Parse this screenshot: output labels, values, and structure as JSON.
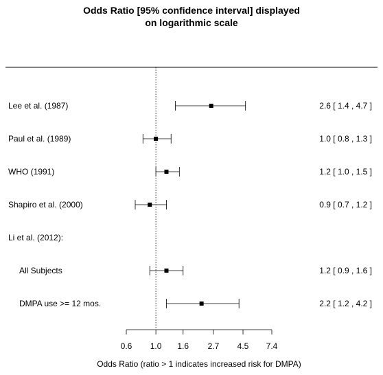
{
  "chart_data": {
    "type": "forest",
    "title_lines": [
      "Odds Ratio [95% confidence interval] displayed",
      "on logarithmic scale"
    ],
    "xlabel": "Odds Ratio (ratio > 1 indicates increased risk for DMPA)",
    "x_scale": "log",
    "xlim": [
      0.6,
      7.4
    ],
    "reference_line": 1.0,
    "x_ticks": [
      {
        "value": 0.6,
        "label": "0.6"
      },
      {
        "value": 1.0,
        "label": "1.0"
      },
      {
        "value": 1.6,
        "label": "1.6"
      },
      {
        "value": 2.7,
        "label": "2.7"
      },
      {
        "value": 4.5,
        "label": "4.5"
      },
      {
        "value": 7.4,
        "label": "7.4"
      }
    ],
    "rows": [
      {
        "label": "Lee et al. (1987)",
        "indent": false,
        "or": 2.6,
        "lo": 1.4,
        "hi": 4.7,
        "ci_text": "2.6 [ 1.4 , 4.7 ]"
      },
      {
        "label": "Paul et al. (1989)",
        "indent": false,
        "or": 1.0,
        "lo": 0.8,
        "hi": 1.3,
        "ci_text": "1.0 [ 0.8 , 1.3 ]"
      },
      {
        "label": "WHO (1991)",
        "indent": false,
        "or": 1.2,
        "lo": 1.0,
        "hi": 1.5,
        "ci_text": "1.2 [ 1.0 , 1.5 ]"
      },
      {
        "label": "Shapiro et al. (2000)",
        "indent": false,
        "or": 0.9,
        "lo": 0.7,
        "hi": 1.2,
        "ci_text": "0.9 [ 0.7 , 1.2 ]"
      },
      {
        "label": "Li et al. (2012):",
        "indent": false,
        "or": null,
        "lo": null,
        "hi": null,
        "ci_text": ""
      },
      {
        "label": "All Subjects",
        "indent": true,
        "or": 1.2,
        "lo": 0.9,
        "hi": 1.6,
        "ci_text": "1.2 [ 0.9 , 1.6 ]"
      },
      {
        "label": "DMPA use >= 12 mos.",
        "indent": true,
        "or": 2.2,
        "lo": 1.2,
        "hi": 4.2,
        "ci_text": "2.2 [ 1.2 , 4.2 ]"
      }
    ]
  }
}
